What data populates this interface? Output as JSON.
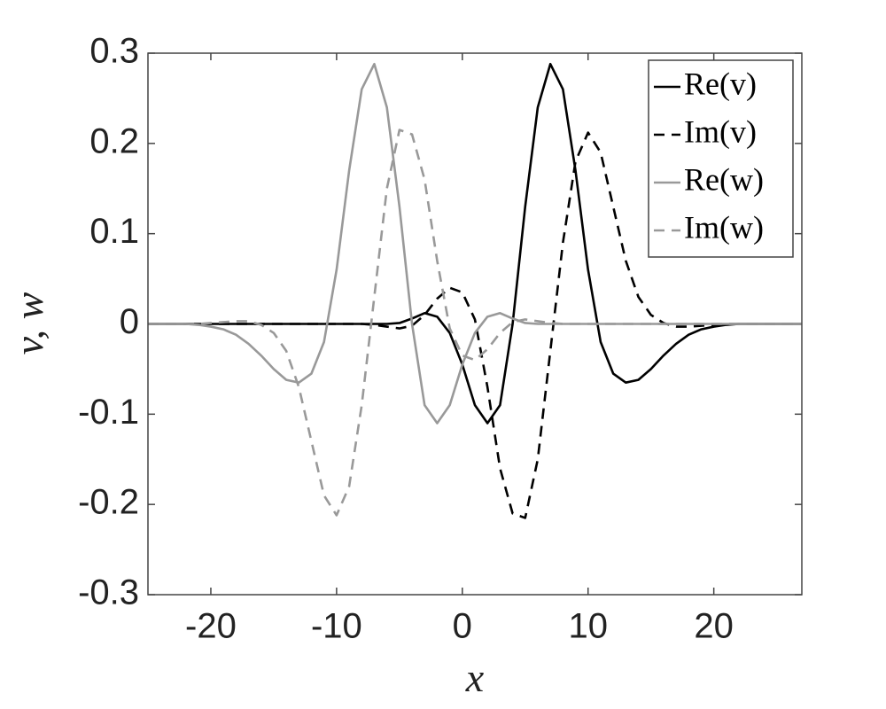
{
  "chart_data": {
    "type": "line",
    "xlabel": "x",
    "ylabel": "v, w",
    "x": [
      -25,
      -24,
      -23,
      -22,
      -21,
      -20,
      -19,
      -18,
      -17,
      -16,
      -15,
      -14,
      -13,
      -12,
      -11,
      -10,
      -9,
      -8,
      -7,
      -6,
      -5,
      -4,
      -3,
      -2,
      -1,
      0,
      1,
      2,
      3,
      4,
      5,
      6,
      7,
      8,
      9,
      10,
      11,
      12,
      13,
      14,
      15,
      16,
      17,
      18,
      19,
      20,
      21,
      22,
      23,
      24,
      25,
      26,
      27
    ],
    "series": [
      {
        "name": "Re(v)",
        "color": "#000000",
        "dash": "solid",
        "values": [
          0,
          0,
          0,
          0,
          0,
          0,
          0,
          0,
          0,
          0,
          0,
          0,
          0,
          0,
          0,
          0,
          0,
          0,
          0,
          0,
          0.001,
          0.006,
          0.012,
          0.008,
          -0.01,
          -0.045,
          -0.09,
          -0.11,
          -0.09,
          0,
          0.13,
          0.24,
          0.288,
          0.26,
          0.17,
          0.06,
          -0.02,
          -0.055,
          -0.065,
          -0.062,
          -0.05,
          -0.035,
          -0.022,
          -0.012,
          -0.006,
          -0.003,
          -0.001,
          0,
          0,
          0,
          0,
          0,
          0
        ]
      },
      {
        "name": "Im(v)",
        "color": "#000000",
        "dash": "dashed",
        "values": [
          0,
          0,
          0,
          0,
          0,
          0,
          0,
          0,
          0,
          0,
          0,
          0,
          0,
          0,
          0,
          0,
          0,
          0,
          -0.001,
          -0.003,
          -0.005,
          -0.002,
          0.01,
          0.028,
          0.04,
          0.035,
          0.005,
          -0.07,
          -0.16,
          -0.21,
          -0.215,
          -0.15,
          -0.03,
          0.09,
          0.18,
          0.212,
          0.19,
          0.13,
          0.07,
          0.03,
          0.01,
          0.001,
          -0.003,
          -0.003,
          -0.002,
          -0.001,
          0,
          0,
          0,
          0,
          0,
          0,
          0
        ]
      },
      {
        "name": "Re(w)",
        "color": "#999999",
        "dash": "solid",
        "values": [
          0,
          0,
          0,
          0,
          -0.001,
          -0.003,
          -0.006,
          -0.012,
          -0.022,
          -0.035,
          -0.05,
          -0.062,
          -0.065,
          -0.055,
          -0.02,
          0.06,
          0.17,
          0.26,
          0.288,
          0.24,
          0.13,
          0,
          -0.09,
          -0.11,
          -0.09,
          -0.045,
          -0.01,
          0.008,
          0.012,
          0.006,
          0.001,
          0,
          0,
          0,
          0,
          0,
          0,
          0,
          0,
          0,
          0,
          0,
          0,
          0,
          0,
          0,
          0,
          0,
          0,
          0,
          0,
          0,
          0
        ]
      },
      {
        "name": "Im(w)",
        "color": "#999999",
        "dash": "dashed",
        "values": [
          0,
          0,
          0,
          0,
          0,
          0.001,
          0.002,
          0.003,
          0.003,
          -0.001,
          -0.01,
          -0.03,
          -0.07,
          -0.13,
          -0.19,
          -0.212,
          -0.18,
          -0.09,
          0.03,
          0.15,
          0.215,
          0.21,
          0.16,
          0.07,
          -0.005,
          -0.035,
          -0.04,
          -0.028,
          -0.01,
          0.002,
          0.005,
          0.003,
          0.001,
          0,
          0,
          0,
          0,
          0,
          0,
          0,
          0,
          0,
          0,
          0,
          0,
          0,
          0,
          0,
          0,
          0,
          0,
          0,
          0
        ]
      }
    ],
    "xlim": [
      -25,
      27
    ],
    "xticks": [
      -20,
      -10,
      0,
      10,
      20
    ],
    "ylim": [
      -0.3,
      0.3
    ],
    "yticks": [
      -0.3,
      -0.2,
      -0.1,
      0,
      0.1,
      0.2,
      0.3
    ],
    "grid": false,
    "legend": "upper right"
  }
}
